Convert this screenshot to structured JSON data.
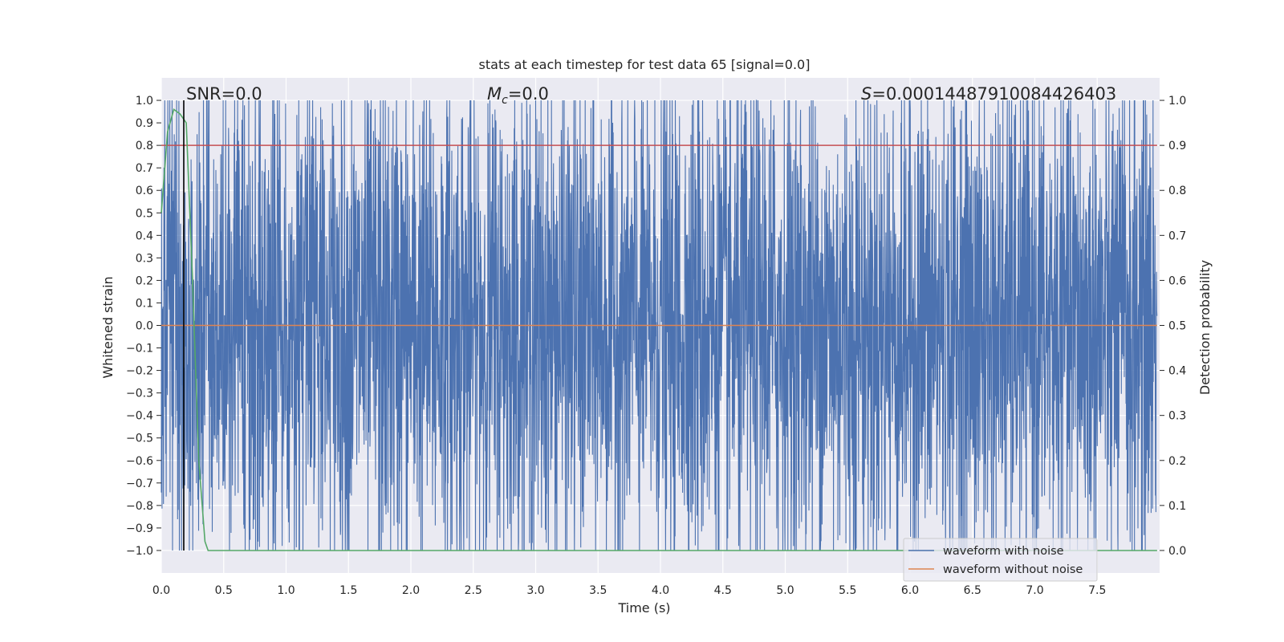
{
  "chart_data": {
    "type": "line",
    "title": "stats at each timestep for test data 65 [signal=0.0]",
    "xlabel": "Time (s)",
    "ylabel_left": "Whitened strain",
    "ylabel_right": "Detection probability",
    "xlim": [
      0.0,
      8.0
    ],
    "ylim_left": [
      -1.1,
      1.1
    ],
    "ylim_right": [
      -0.05,
      1.05
    ],
    "x_ticks": [
      "0.0",
      "0.5",
      "1.0",
      "1.5",
      "2.0",
      "2.5",
      "3.0",
      "3.5",
      "4.0",
      "4.5",
      "5.0",
      "5.5",
      "6.0",
      "6.5",
      "7.0",
      "7.5"
    ],
    "y_left_ticks": [
      "1.0",
      "0.9",
      "0.8",
      "0.7",
      "0.6",
      "0.5",
      "0.4",
      "0.3",
      "0.2",
      "0.1",
      "0.0",
      "−0.1",
      "−0.2",
      "−0.3",
      "−0.4",
      "−0.5",
      "−0.6",
      "−0.7",
      "−0.8",
      "−0.9",
      "−1.0"
    ],
    "y_right_ticks": [
      "1.0",
      "0.9",
      "0.8",
      "0.7",
      "0.6",
      "0.5",
      "0.4",
      "0.3",
      "0.2",
      "0.1",
      "0.0"
    ],
    "annotations": {
      "snr": "SNR=0.0",
      "mc_symbol": "M",
      "mc_sub": "c",
      "mc_value": "=0.0",
      "s_symbol": "S",
      "s_value": "=0.00014487910084426403"
    },
    "legend": {
      "placement": "lower-right",
      "entries": [
        "waveform with noise",
        "waveform without noise"
      ]
    },
    "series": [
      {
        "name": "waveform with noise",
        "axis": "left",
        "color": "#4c72b0",
        "description_values": "dense noise filling approx -0.95..0.95, clipped at ±1.0",
        "sample_rate_hz": 512,
        "range": [
          -1.0,
          1.0
        ]
      },
      {
        "name": "waveform without noise",
        "axis": "left",
        "color": "#dd8452",
        "y": 0.0
      },
      {
        "axis": "right",
        "color": "#55a868",
        "x": [
          0.0,
          0.05,
          0.1,
          0.15,
          0.2,
          0.25,
          0.3,
          0.35,
          0.375,
          7.98
        ],
        "y": [
          0.75,
          0.93,
          0.98,
          0.97,
          0.95,
          0.6,
          0.2,
          0.02,
          0.0,
          0.0
        ]
      }
    ],
    "threshold_line": {
      "axis": "right",
      "y": 0.9,
      "color": "#c44e52"
    },
    "marker_line": {
      "x": 0.18,
      "color": "#000000"
    }
  }
}
